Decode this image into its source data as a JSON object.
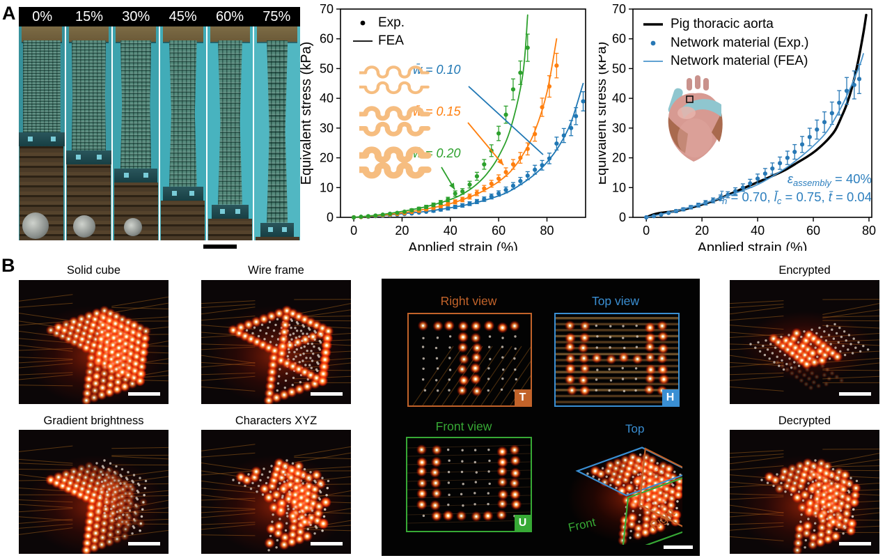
{
  "colors": {
    "blue": "#1f77b4",
    "orange": "#ff7f0e",
    "green": "#2ca02c",
    "net_blue": "#2878b5",
    "net_blue_light": "#4a94cc",
    "aorta_black": "#000000",
    "serpentine": "#f6bd80",
    "view_orange": "#c2632a",
    "view_blue": "#3a8fd3",
    "view_green": "#37a935",
    "photo_teal": "#3fa8b2"
  },
  "panel_a": {
    "label": "A",
    "strip": {
      "labels": [
        "0%",
        "15%",
        "30%",
        "45%",
        "60%",
        "75%"
      ]
    }
  },
  "chart_data": [
    {
      "type": "line",
      "title": "",
      "xlabel": "Applied strain (%)",
      "ylabel": "Equivalent stress (kPa)",
      "xlim": [
        -5.5,
        96
      ],
      "ylim": [
        0,
        70
      ],
      "xticks": [
        0,
        20,
        40,
        60,
        80
      ],
      "yticks": [
        0,
        10,
        20,
        30,
        40,
        50,
        60,
        70
      ],
      "grid": false,
      "legend_position": "upper-left",
      "legend": [
        {
          "label": "Exp.",
          "marker": "dot",
          "color": "#000000"
        },
        {
          "label": "FEA",
          "marker": "line",
          "color": "#000000"
        }
      ],
      "annotations": [
        {
          "text": "w̄ = 0.10",
          "color": "#1f77b4"
        },
        {
          "text": "w̄ = 0.15",
          "color": "#ff7f0e"
        },
        {
          "text": "w̄ = 0.20",
          "color": "#2ca02c"
        }
      ],
      "series": [
        {
          "name": "w̄ = 0.10 Exp.",
          "style": "dots",
          "color": "#1f77b4",
          "x": [
            0,
            3,
            6,
            9,
            12,
            15,
            18,
            21,
            24,
            27,
            30,
            33,
            36,
            39,
            42,
            45,
            48,
            51,
            54,
            57,
            60,
            63,
            66,
            69,
            72,
            75,
            78,
            81,
            84,
            87,
            90,
            92,
            95
          ],
          "y": [
            0,
            0.1,
            0.2,
            0.4,
            0.5,
            0.7,
            0.9,
            1.1,
            1.3,
            1.6,
            1.9,
            2.2,
            2.6,
            3,
            3.5,
            4,
            4.6,
            5.3,
            6.1,
            7,
            8,
            9.2,
            10.6,
            12.2,
            14,
            16,
            17.5,
            19.8,
            24.8,
            27.5,
            30,
            34,
            39
          ],
          "err": [
            0.3,
            0.075
          ]
        },
        {
          "name": "w̄ = 0.10 FEA",
          "style": "line",
          "color": "#1f77b4",
          "x": [
            0,
            10,
            20,
            30,
            40,
            50,
            60,
            65,
            70,
            75,
            80,
            85,
            90,
            95
          ],
          "y": [
            0,
            0.5,
            1.2,
            2,
            3.2,
            4.8,
            7.2,
            9,
            11.5,
            14.5,
            18.5,
            24,
            32,
            45
          ]
        },
        {
          "name": "w̄ = 0.15 Exp.",
          "style": "dots",
          "color": "#ff7f0e",
          "x": [
            0,
            3,
            6,
            9,
            12,
            15,
            18,
            21,
            24,
            27,
            30,
            33,
            36,
            39,
            42,
            45,
            48,
            51,
            54,
            57,
            60,
            63,
            66,
            69,
            72,
            75,
            78,
            81,
            84
          ],
          "y": [
            0,
            0.1,
            0.3,
            0.5,
            0.7,
            0.9,
            1.1,
            1.4,
            1.8,
            2.2,
            2.7,
            3.2,
            3.8,
            4.5,
            5.2,
            6,
            7,
            8.2,
            9.7,
            11.3,
            13,
            15.2,
            17.8,
            20,
            23,
            28,
            37,
            44,
            51
          ],
          "err": [
            0.3,
            0.075
          ]
        },
        {
          "name": "w̄ = 0.15 FEA",
          "style": "line",
          "color": "#ff7f0e",
          "x": [
            0,
            10,
            20,
            30,
            40,
            50,
            55,
            60,
            65,
            70,
            75,
            80,
            84
          ],
          "y": [
            0,
            0.6,
            1.5,
            2.8,
            4.6,
            7.5,
            9.5,
            12,
            15.5,
            21,
            29,
            42,
            60
          ]
        },
        {
          "name": "w̄ = 0.20 Exp.",
          "style": "dots",
          "color": "#2ca02c",
          "x": [
            0,
            3,
            6,
            9,
            12,
            15,
            18,
            21,
            24,
            27,
            30,
            33,
            36,
            39,
            42,
            45,
            48,
            51,
            54,
            57,
            60,
            63,
            66,
            69,
            72
          ],
          "y": [
            0,
            0.2,
            0.4,
            0.6,
            0.9,
            1.2,
            1.5,
            1.9,
            2.4,
            2.9,
            3.5,
            4.2,
            5,
            6,
            8,
            8.7,
            11,
            13.8,
            17.8,
            22.4,
            28.2,
            34.5,
            43,
            48.6,
            57
          ],
          "err": [
            0.3,
            0.075
          ]
        },
        {
          "name": "w̄ = 0.20 FEA",
          "style": "line",
          "color": "#2ca02c",
          "x": [
            0,
            10,
            20,
            30,
            40,
            45,
            50,
            55,
            60,
            65,
            70,
            72
          ],
          "y": [
            0,
            0.8,
            2,
            3.6,
            6,
            7.8,
            10.5,
            14.5,
            20.5,
            30,
            48,
            68
          ]
        }
      ]
    },
    {
      "type": "line",
      "title": "",
      "xlabel": "Applied strain (%)",
      "ylabel": "Equivalent stress (kPa)",
      "xlim": [
        -4.8,
        81
      ],
      "ylim": [
        0,
        70
      ],
      "xticks": [
        0,
        20,
        40,
        60,
        80
      ],
      "yticks": [
        0,
        10,
        20,
        30,
        40,
        50,
        60,
        70
      ],
      "grid": false,
      "legend_position": "upper-left",
      "legend": [
        {
          "label": "Pig thoracic aorta",
          "marker": "thickline",
          "color": "#000000"
        },
        {
          "label": "Network material (Exp.)",
          "marker": "dot",
          "color": "#2878b5"
        },
        {
          "label": "Network material (FEA)",
          "marker": "line",
          "color": "#4a94cc"
        }
      ],
      "annotation_lines": [
        {
          "parts": [
            {
              "t": "ε",
              "i": true
            },
            {
              "t": "assembly",
              "sub": true
            },
            {
              "t": " = 40%"
            }
          ]
        },
        {
          "parts": [
            {
              "t": "l̄",
              "i": true
            },
            {
              "t": "h",
              "sub": true
            },
            {
              "t": " = 0.70, "
            },
            {
              "t": "l̄",
              "i": true
            },
            {
              "t": "c",
              "sub": true
            },
            {
              "t": " = 0.75, "
            },
            {
              "t": "t̄",
              "i": true
            },
            {
              "t": " = 0.04"
            }
          ]
        }
      ],
      "series": [
        {
          "name": "Pig thoracic aorta",
          "style": "line",
          "color": "#000000",
          "width": 3.4,
          "x": [
            0,
            2,
            4,
            6,
            8,
            10,
            15,
            20,
            25,
            30,
            35,
            40,
            45,
            50,
            55,
            58,
            61,
            64,
            66,
            68,
            70,
            72,
            74,
            76,
            78,
            79
          ],
          "y": [
            0,
            0.8,
            1.3,
            1.6,
            1.8,
            2,
            3,
            4.3,
            5.8,
            7.8,
            9.8,
            11.8,
            13.8,
            16,
            18.8,
            20.5,
            22.5,
            25,
            27,
            29.5,
            33.5,
            38,
            44,
            52,
            62,
            68
          ]
        },
        {
          "name": "Network material (Exp.)",
          "style": "dots",
          "color": "#2878b5",
          "x": [
            0,
            2.7,
            5.3,
            8,
            10.7,
            13.3,
            16,
            18.7,
            21.3,
            24,
            26.7,
            29.3,
            32,
            34.7,
            37.3,
            40,
            42.7,
            45.3,
            48,
            50.7,
            53.3,
            56,
            58.7,
            61.3,
            64,
            66.7,
            69.3,
            72,
            74.7,
            76.5
          ],
          "y": [
            0,
            0.4,
            0.9,
            1.5,
            2.1,
            2.7,
            3.4,
            4.1,
            4.9,
            5.7,
            6.6,
            7.6,
            8.8,
            10,
            11.4,
            13,
            14.7,
            16.4,
            18.2,
            20,
            22,
            24.5,
            27,
            29.5,
            32,
            35,
            38.5,
            42.5,
            44.5,
            46.5
          ],
          "err": [
            0.25,
            0.1
          ]
        },
        {
          "name": "Network material (FEA)",
          "style": "line",
          "color": "#4a94cc",
          "width": 1.8,
          "x": [
            0,
            10,
            20,
            30,
            40,
            50,
            55,
            60,
            65,
            70,
            74,
            77,
            78
          ],
          "y": [
            0,
            2,
            4.5,
            7.5,
            11,
            16.5,
            20,
            24,
            29,
            37,
            45,
            52,
            55
          ]
        }
      ]
    }
  ],
  "panel_b": {
    "label": "B",
    "tiles": [
      {
        "title": "Solid cube"
      },
      {
        "title": "Wire frame"
      },
      {
        "title": "Gradient brightness"
      },
      {
        "title": "Characters XYZ"
      },
      {
        "title": "Encrypted"
      },
      {
        "title": "Decrypted"
      }
    ],
    "views": {
      "right": {
        "label": "Right view",
        "badge": "T"
      },
      "top": {
        "label": "Top view",
        "badge": "H"
      },
      "front": {
        "label": "Front view",
        "badge": "U"
      },
      "cube": {
        "top": "Top",
        "front": "Front",
        "right": "Right"
      }
    }
  }
}
